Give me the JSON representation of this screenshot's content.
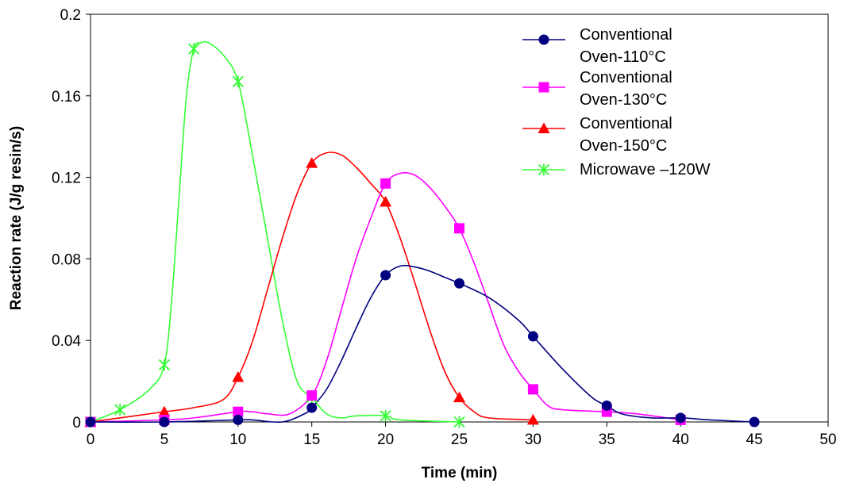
{
  "chart_data": {
    "type": "line",
    "title": "",
    "xlabel": "Time (min)",
    "ylabel": "Reaction rate (J/g resin/s)",
    "xlim": [
      0,
      50
    ],
    "ylim": [
      0,
      0.2
    ],
    "x_ticks": [
      "0",
      "5",
      "10",
      "15",
      "20",
      "25",
      "30",
      "35",
      "40",
      "45",
      "50"
    ],
    "y_ticks": [
      "0",
      "0.04",
      "0.08",
      "0.12",
      "0.16",
      "0.2"
    ],
    "grid": false,
    "legend_position": "top-right",
    "series": [
      {
        "name_lines": [
          "Conventional",
          "Oven-110°C"
        ],
        "color": "#000080",
        "marker": "circle",
        "points": [
          [
            0,
            0
          ],
          [
            5,
            0
          ],
          [
            10,
            0.001
          ],
          [
            15,
            0.007
          ],
          [
            20,
            0.072
          ],
          [
            25,
            0.068
          ],
          [
            30,
            0.042
          ],
          [
            35,
            0.008
          ],
          [
            40,
            0.002
          ],
          [
            45,
            0
          ]
        ],
        "curve": [
          [
            0,
            0
          ],
          [
            5,
            0
          ],
          [
            10,
            0.001
          ],
          [
            11,
            0.001
          ],
          [
            13,
            0
          ],
          [
            14.5,
            0.004
          ],
          [
            15,
            0.007
          ],
          [
            16,
            0.016
          ],
          [
            17,
            0.03
          ],
          [
            18,
            0.046
          ],
          [
            19,
            0.061
          ],
          [
            20,
            0.072
          ],
          [
            21,
            0.0765
          ],
          [
            22,
            0.076
          ],
          [
            23,
            0.074
          ],
          [
            24,
            0.071
          ],
          [
            25,
            0.068
          ],
          [
            27,
            0.061
          ],
          [
            29,
            0.05
          ],
          [
            30,
            0.042
          ],
          [
            32,
            0.026
          ],
          [
            34,
            0.012
          ],
          [
            35,
            0.008
          ],
          [
            36,
            0.004
          ],
          [
            38,
            0.002
          ],
          [
            40,
            0.002
          ],
          [
            42,
            0.001
          ],
          [
            45,
            0
          ]
        ]
      },
      {
        "name_lines": [
          "Conventional",
          "Oven-130°C"
        ],
        "color": "#FF00FF",
        "marker": "square",
        "points": [
          [
            0,
            0
          ],
          [
            5,
            0.001
          ],
          [
            10,
            0.005
          ],
          [
            15,
            0.013
          ],
          [
            20,
            0.117
          ],
          [
            25,
            0.095
          ],
          [
            30,
            0.016
          ],
          [
            35,
            0.005
          ],
          [
            40,
            0.001
          ]
        ],
        "curve": [
          [
            0,
            0
          ],
          [
            5,
            0.001
          ],
          [
            7,
            0.002
          ],
          [
            10,
            0.005
          ],
          [
            11,
            0.005
          ],
          [
            12,
            0.004
          ],
          [
            13.5,
            0.004
          ],
          [
            15,
            0.013
          ],
          [
            16,
            0.03
          ],
          [
            17,
            0.055
          ],
          [
            18,
            0.08
          ],
          [
            19,
            0.1
          ],
          [
            20,
            0.117
          ],
          [
            21,
            0.122
          ],
          [
            22,
            0.121
          ],
          [
            23,
            0.115
          ],
          [
            24,
            0.106
          ],
          [
            25,
            0.095
          ],
          [
            26,
            0.078
          ],
          [
            27,
            0.058
          ],
          [
            28,
            0.038
          ],
          [
            29,
            0.025
          ],
          [
            30,
            0.016
          ],
          [
            31,
            0.008
          ],
          [
            32,
            0.006
          ],
          [
            35,
            0.005
          ],
          [
            37,
            0.004
          ],
          [
            40,
            0.001
          ]
        ]
      },
      {
        "name_lines": [
          "Conventional",
          "Oven-150°C"
        ],
        "color": "#FF0000",
        "marker": "triangle",
        "points": [
          [
            0,
            0
          ],
          [
            5,
            0.005
          ],
          [
            10,
            0.022
          ],
          [
            15,
            0.127
          ],
          [
            20,
            0.108
          ],
          [
            25,
            0.012
          ],
          [
            30,
            0.001
          ]
        ],
        "curve": [
          [
            0,
            0
          ],
          [
            3,
            0.003
          ],
          [
            5,
            0.005
          ],
          [
            7,
            0.007
          ],
          [
            9,
            0.011
          ],
          [
            10,
            0.022
          ],
          [
            11,
            0.04
          ],
          [
            12,
            0.065
          ],
          [
            13,
            0.09
          ],
          [
            14,
            0.112
          ],
          [
            15,
            0.127
          ],
          [
            16,
            0.132
          ],
          [
            17,
            0.131
          ],
          [
            18,
            0.125
          ],
          [
            19,
            0.117
          ],
          [
            20,
            0.108
          ],
          [
            21,
            0.09
          ],
          [
            22,
            0.068
          ],
          [
            23,
            0.045
          ],
          [
            24,
            0.025
          ],
          [
            25,
            0.012
          ],
          [
            26,
            0.005
          ],
          [
            27,
            0.002
          ],
          [
            30,
            0.001
          ]
        ]
      },
      {
        "name_lines": [
          "Microwave –120W"
        ],
        "color": "#33FF33",
        "marker": "star",
        "points": [
          [
            0,
            0
          ],
          [
            2,
            0.006
          ],
          [
            5,
            0.028
          ],
          [
            7,
            0.183
          ],
          [
            10,
            0.167
          ],
          [
            15,
            0.012
          ],
          [
            20,
            0.003
          ],
          [
            25,
            0
          ]
        ],
        "curve": [
          [
            0,
            0
          ],
          [
            2,
            0.006
          ],
          [
            4,
            0.016
          ],
          [
            5,
            0.028
          ],
          [
            5.5,
            0.06
          ],
          [
            6,
            0.11
          ],
          [
            6.5,
            0.16
          ],
          [
            7,
            0.183
          ],
          [
            7.5,
            0.186
          ],
          [
            8,
            0.186
          ],
          [
            9,
            0.18
          ],
          [
            10,
            0.167
          ],
          [
            11,
            0.13
          ],
          [
            12,
            0.09
          ],
          [
            13,
            0.05
          ],
          [
            14,
            0.02
          ],
          [
            15,
            0.012
          ],
          [
            16,
            0.004
          ],
          [
            17,
            0.002
          ],
          [
            18,
            0.003
          ],
          [
            20,
            0.003
          ],
          [
            21,
            0.001
          ],
          [
            25,
            0
          ]
        ]
      }
    ]
  }
}
